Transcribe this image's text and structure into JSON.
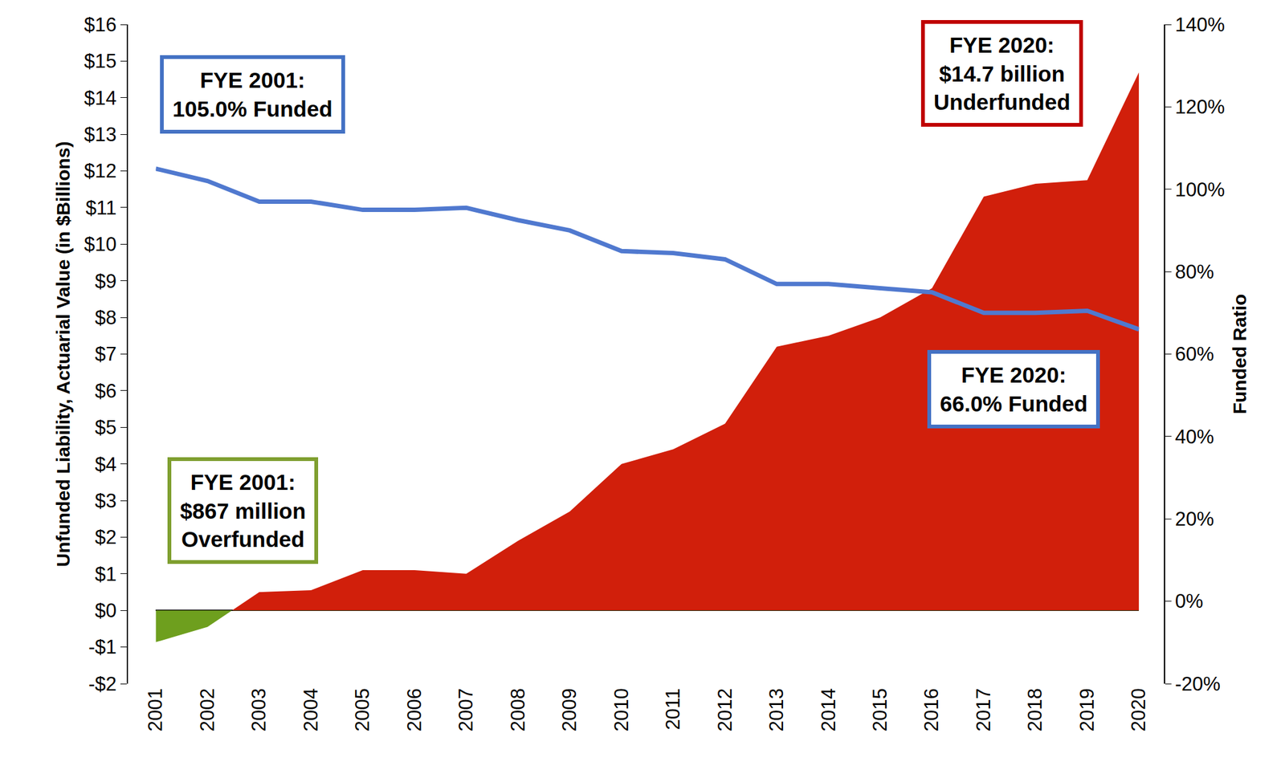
{
  "chart_data": {
    "type": "area_line",
    "ylabel": "Unfunded Liability, Actuarial Value (in $Billions)",
    "y2label": "Funded Ratio",
    "categories": [
      "2001",
      "2002",
      "2003",
      "2004",
      "2005",
      "2006",
      "2007",
      "2008",
      "2009",
      "2010",
      "2011",
      "2012",
      "2013",
      "2014",
      "2015",
      "2016",
      "2017",
      "2018",
      "2019",
      "2020"
    ],
    "series": [
      {
        "type": "area",
        "axis": "y",
        "colors": [
          "#6E9F1E",
          "#6E9F1E",
          "#D11F0B",
          "#D11F0B",
          "#D11F0B",
          "#D11F0B",
          "#D11F0B",
          "#D11F0B",
          "#D11F0B",
          "#D11F0B",
          "#D11F0B",
          "#D11F0B",
          "#D11F0B",
          "#D11F0B",
          "#D11F0B",
          "#D11F0B",
          "#D11F0B",
          "#D11F0B",
          "#D11F0B",
          "#D11F0B"
        ],
        "values": [
          -0.867,
          -0.45,
          0.5,
          0.55,
          1.1,
          1.1,
          1.0,
          1.9,
          2.7,
          4.0,
          4.4,
          5.1,
          7.2,
          7.5,
          8.0,
          8.8,
          11.3,
          11.65,
          11.75,
          14.7
        ]
      },
      {
        "type": "line",
        "axis": "y2",
        "color": "#5079CF",
        "values": [
          105.0,
          102,
          97,
          97,
          95,
          95,
          95.5,
          92.5,
          90,
          85,
          84.5,
          83,
          77,
          77,
          76,
          75,
          70,
          70,
          70.5,
          66.0
        ]
      }
    ],
    "ylim": [
      -2,
      16
    ],
    "yticks": [
      {
        "value": -2,
        "label": "-$2"
      },
      {
        "value": -1,
        "label": "-$1"
      },
      {
        "value": 0,
        "label": "$0"
      },
      {
        "value": 1,
        "label": "$1"
      },
      {
        "value": 2,
        "label": "$2"
      },
      {
        "value": 3,
        "label": "$3"
      },
      {
        "value": 4,
        "label": "$4"
      },
      {
        "value": 5,
        "label": "$5"
      },
      {
        "value": 6,
        "label": "$6"
      },
      {
        "value": 7,
        "label": "$7"
      },
      {
        "value": 8,
        "label": "$8"
      },
      {
        "value": 9,
        "label": "$9"
      },
      {
        "value": 10,
        "label": "$10"
      },
      {
        "value": 11,
        "label": "$11"
      },
      {
        "value": 12,
        "label": "$12"
      },
      {
        "value": 13,
        "label": "$13"
      },
      {
        "value": 14,
        "label": "$14"
      },
      {
        "value": 15,
        "label": "$15"
      },
      {
        "value": 16,
        "label": "$16"
      }
    ],
    "y2lim": [
      -20,
      140
    ],
    "y2ticks": [
      {
        "value": -20,
        "label": "-20%"
      },
      {
        "value": 0,
        "label": "0%"
      },
      {
        "value": 20,
        "label": "20%"
      },
      {
        "value": 40,
        "label": "40%"
      },
      {
        "value": 60,
        "label": "60%"
      },
      {
        "value": 80,
        "label": "80%"
      },
      {
        "value": 100,
        "label": "100%"
      },
      {
        "value": 120,
        "label": "120%"
      },
      {
        "value": 140,
        "label": "140%"
      }
    ],
    "grid": false,
    "annotations": [
      {
        "text": "FYE 2001:\n105.0% Funded",
        "color": "#4472C4"
      },
      {
        "text": "FYE 2020:\n$14.7 billion\nUnderfunded",
        "color": "#C00000"
      },
      {
        "text": "FYE 2020:\n66.0% Funded",
        "color": "#4472C4"
      },
      {
        "text": "FYE 2001:\n$867 million\nOverfunded",
        "color": "#7F9F2F"
      }
    ]
  }
}
